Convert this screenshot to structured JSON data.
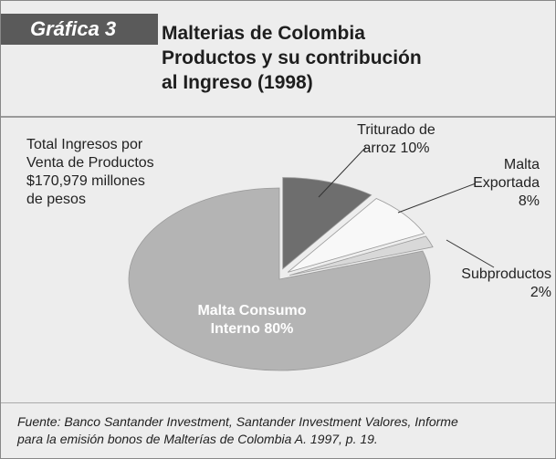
{
  "chart_data": {
    "type": "pie",
    "label": "Gráfica 3",
    "title": "Malterias de Colombia",
    "subtitle": [
      "Productos y su contribución",
      "al Ingreso (1998)"
    ],
    "annotation": [
      "Total Ingresos por",
      "Venta de Productos",
      "$170,979 millones",
      "de pesos"
    ],
    "categories": [
      "Malta Consumo Interno",
      "Triturado de arroz",
      "Malta Exportada",
      "Subproductos"
    ],
    "values": [
      80,
      10,
      8,
      2
    ],
    "value_labels": [
      "80%",
      "10%",
      "8%",
      "2%"
    ],
    "colors": [
      "#b4b4b4",
      "#6e6e6e",
      "#f8f8f8",
      "#d8d8d8"
    ],
    "source": [
      "Fuente: Banco Santander Investment, Santander Investment Valores, Informe",
      "para la emisión bonos de Malterías de Colombia A. 1997, p. 19."
    ]
  }
}
